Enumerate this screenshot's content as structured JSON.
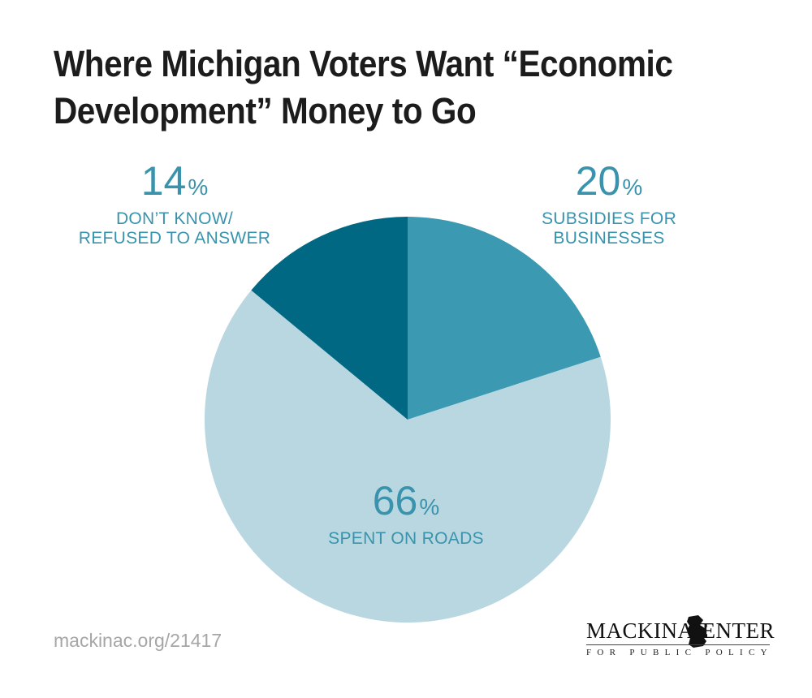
{
  "title": "Where Michigan Voters Want “Economic Development” Money to Go",
  "chart_data": {
    "type": "pie",
    "start_angle_deg": 0,
    "direction": "clockwise",
    "slices": [
      {
        "key": "subsidies",
        "label": "SUBSIDIES FOR BUSINESSES",
        "label_lines": [
          "SUBSIDIES FOR",
          "BUSINESSES"
        ],
        "value": 20,
        "value_text": "20",
        "color": "#3b9ab2"
      },
      {
        "key": "roads",
        "label": "SPENT ON ROADS",
        "label_lines": [
          "SPENT ON ROADS"
        ],
        "value": 66,
        "value_text": "66",
        "color": "#b8d7e0"
      },
      {
        "key": "dont_know",
        "label": "DON’T KNOW/ REFUSED TO ANSWER",
        "label_lines": [
          "DON’T KNOW/",
          "REFUSED TO ANSWER"
        ],
        "value": 14,
        "value_text": "14",
        "color": "#006882"
      }
    ],
    "percent_symbol": "%",
    "label_color": "#3a93ad"
  },
  "source": "mackinac.org/21417",
  "logo": {
    "left_word": "MACKINAC",
    "right_word": "CENTER",
    "subtitle": "FOR PUBLIC POLICY",
    "color": "#111111"
  }
}
